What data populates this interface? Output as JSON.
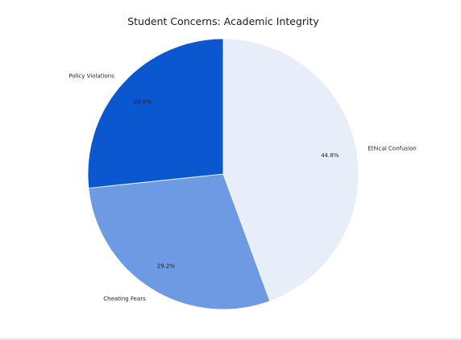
{
  "chart_data": {
    "type": "pie",
    "title": "Student Concerns: Academic Integrity",
    "slices": [
      {
        "label": "Ethical Confusion",
        "value": 44.8,
        "display": "44.8%",
        "color": "#e8eef9"
      },
      {
        "label": "Cheating Fears",
        "value": 29.2,
        "display": "29.2%",
        "color": "#6d9ae3"
      },
      {
        "label": "Policy Violations",
        "value": 26.9,
        "display": "26.9%",
        "color": "#0b57d0"
      }
    ],
    "start_angle": "12 o'clock",
    "direction": "clockwise",
    "legend": "none",
    "labels": "outside slice name, inside percentage"
  }
}
